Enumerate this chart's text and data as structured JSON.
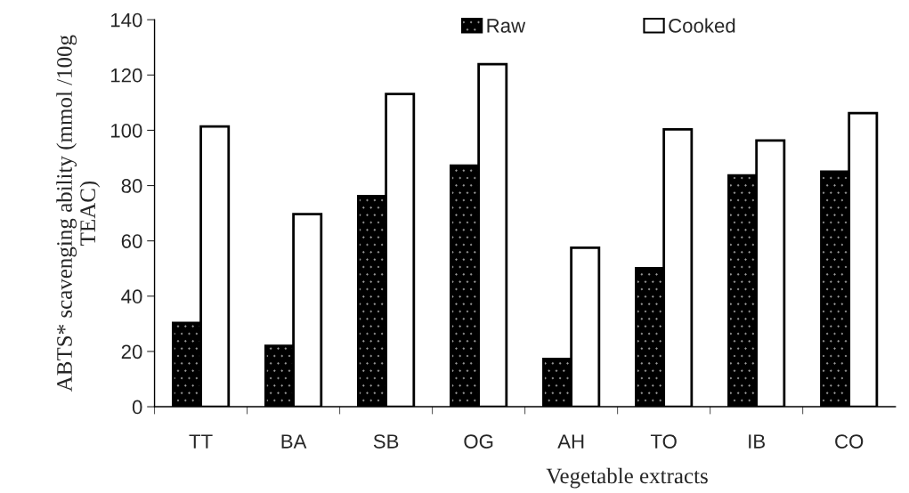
{
  "chart_data": {
    "type": "bar",
    "xlabel": "Vegetable extracts",
    "ylabel": "ABTS* scavenging ability (mmol /100g\nTEAC)",
    "categories": [
      "TT",
      "BA",
      "SB",
      "OG",
      "AH",
      "TO",
      "IB",
      "CO"
    ],
    "series": [
      {
        "name": "Raw",
        "color": "#000000",
        "values": [
          30.3,
          22,
          76.2,
          87.2,
          17.3,
          50.1,
          83.7,
          85
        ]
      },
      {
        "name": "Cooked",
        "color": "#ffffff",
        "values": [
          101.4,
          69.7,
          113.1,
          123.9,
          57.5,
          100.3,
          96.3,
          106.2
        ]
      }
    ],
    "ylim": [
      0,
      140
    ],
    "yticks": [
      0,
      20,
      40,
      60,
      80,
      100,
      120,
      140
    ],
    "grid": false,
    "legend": "top"
  }
}
